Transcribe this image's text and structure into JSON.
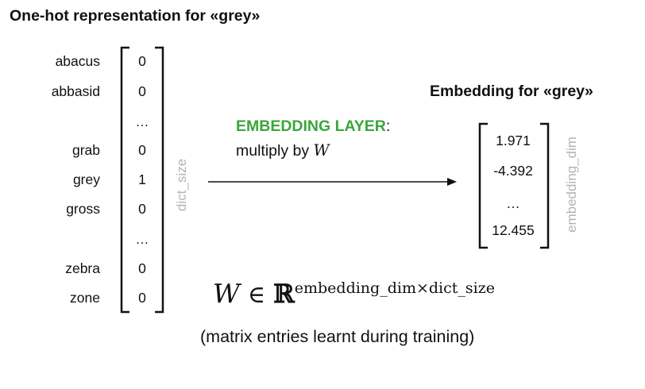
{
  "onehot": {
    "title": "One-hot representation for «grey»",
    "rows": [
      {
        "word": "abacus",
        "value": "0"
      },
      {
        "word": "abbasid",
        "value": "0"
      },
      {
        "word": "",
        "value": "…"
      },
      {
        "word": "grab",
        "value": "0"
      },
      {
        "word": "grey",
        "value": "1"
      },
      {
        "word": "gross",
        "value": "0"
      },
      {
        "word": "",
        "value": "…"
      },
      {
        "word": "zebra",
        "value": "0"
      },
      {
        "word": "zone",
        "value": "0"
      }
    ],
    "side_label": "dict_size"
  },
  "layer": {
    "name": "EMBEDDING LAYER",
    "colon": ":",
    "action": "multiply by ",
    "symbol": "W"
  },
  "embedding": {
    "title": "Embedding for «grey»",
    "values": [
      "1.971",
      "-4.392",
      "…",
      "12.455"
    ],
    "side_label": "embedding_dim"
  },
  "formula": {
    "lhs": "W",
    "relation": "∈",
    "set": "ℝ",
    "exponent": "embedding_dim×dict_size"
  },
  "caption": "(matrix entries learnt during training)",
  "colors": {
    "accent_green": "#3aa63a",
    "side_label_gray": "#b3b3b3",
    "text": "#111111"
  }
}
